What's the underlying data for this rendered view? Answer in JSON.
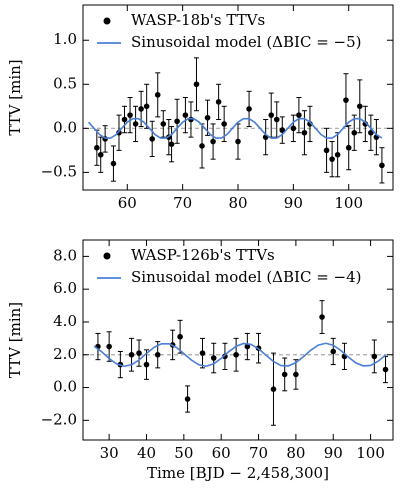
{
  "chart_data": [
    {
      "type": "scatter",
      "ylabel": "TTV [min]",
      "xlim": [
        52,
        108
      ],
      "xticks": [
        60,
        70,
        80,
        90,
        100
      ],
      "ylim": [
        -0.7,
        1.4
      ],
      "yticks": [
        {
          "value": -0.5,
          "label": "−0.5"
        },
        {
          "value": 0,
          "label": "0.0"
        },
        {
          "value": 0.5,
          "label": "0.5"
        },
        {
          "value": 1,
          "label": "1.0"
        }
      ],
      "reference_line": 0,
      "legend": "upper left",
      "series": [
        {
          "name": "WASP-18b's TTVs",
          "color": "#000000",
          "type": "errorbar",
          "x": [
            54.5,
            55.2,
            56,
            57.5,
            58.5,
            59.5,
            60.5,
            61.5,
            62.5,
            63.5,
            64.5,
            65.5,
            66.5,
            67.5,
            68,
            69,
            70.5,
            71.5,
            72.5,
            73.5,
            74.5,
            75.5,
            76.5,
            77.5,
            80,
            82,
            85,
            86,
            87,
            88,
            90,
            91,
            92,
            93,
            96,
            97,
            98,
            99.5,
            100,
            101,
            102,
            103,
            104,
            105,
            106
          ],
          "values": [
            -0.22,
            -0.3,
            -0.12,
            -0.4,
            -0.05,
            0.1,
            0.15,
            0.05,
            0.22,
            0.25,
            -0.12,
            0.38,
            0.05,
            -0.1,
            -0.18,
            0.08,
            0.15,
            0.1,
            0.5,
            -0.2,
            0.12,
            -0.15,
            0.3,
            0.05,
            -0.15,
            0.22,
            -0.1,
            0.15,
            0.1,
            -0.02,
            0,
            0.15,
            -0.05,
            0.05,
            -0.25,
            -0.35,
            -0.3,
            0.32,
            -0.22,
            -0.05,
            0.25,
            0.05,
            -0.05,
            -0.1,
            -0.42
          ],
          "errors": [
            0.2,
            0.2,
            0.15,
            0.2,
            0.2,
            0.15,
            0.2,
            0.2,
            0.2,
            0.25,
            0.2,
            0.25,
            0.15,
            0.2,
            0.2,
            0.25,
            0.2,
            0.2,
            0.3,
            0.25,
            0.2,
            0.2,
            0.2,
            0.2,
            0.2,
            0.2,
            0.2,
            0.25,
            0.2,
            0.15,
            0.15,
            0.2,
            0.25,
            0.2,
            0.25,
            0.2,
            0.25,
            0.3,
            0.25,
            0.2,
            0.3,
            0.2,
            0.2,
            0.2,
            0.2
          ]
        },
        {
          "name": "Sinusoidal model (ΔBIC = −5)",
          "color": "#4a7fd6",
          "type": "line",
          "x": [
            53,
            54,
            55,
            56,
            57,
            58,
            59,
            60,
            61,
            62,
            63,
            64,
            65,
            66,
            67,
            68,
            69,
            70,
            71,
            72,
            73,
            74,
            75,
            76,
            77,
            78,
            79,
            80,
            81,
            82,
            83,
            84,
            85,
            86,
            87,
            88,
            89,
            90,
            91,
            92,
            93,
            94,
            95,
            96,
            97,
            98,
            99,
            100,
            101,
            102,
            103,
            104,
            105,
            106
          ],
          "values": [
            0.07,
            0,
            -0.07,
            -0.11,
            -0.11,
            -0.07,
            0,
            0.07,
            0.11,
            0.11,
            0.07,
            0,
            -0.07,
            -0.11,
            -0.11,
            -0.07,
            0,
            0.07,
            0.11,
            0.11,
            0.07,
            0,
            -0.07,
            -0.11,
            -0.11,
            -0.07,
            0,
            0.07,
            0.11,
            0.11,
            0.07,
            0,
            -0.07,
            -0.11,
            -0.11,
            -0.07,
            0,
            0.07,
            0.11,
            0.11,
            0.07,
            0,
            -0.07,
            -0.11,
            -0.11,
            -0.07,
            0,
            0.07,
            0.11,
            0.11,
            0.07,
            0,
            -0.07,
            -0.11
          ]
        }
      ]
    },
    {
      "type": "scatter",
      "xlabel": "Time [BJD − 2,458,300]",
      "ylabel": "TTV [min]",
      "xlim": [
        23,
        106
      ],
      "xticks": [
        30,
        40,
        50,
        60,
        70,
        80,
        90,
        100
      ],
      "ylim": [
        -3.2,
        9.0
      ],
      "yticks": [
        {
          "value": -2,
          "label": "−2.0"
        },
        {
          "value": 0,
          "label": "0.0"
        },
        {
          "value": 2,
          "label": "2.0"
        },
        {
          "value": 4,
          "label": "4.0"
        },
        {
          "value": 6,
          "label": "6.0"
        },
        {
          "value": 8,
          "label": "8.0"
        }
      ],
      "reference_line": 2,
      "legend": "upper left",
      "series": [
        {
          "name": "WASP-126b's TTVs",
          "color": "#000000",
          "type": "errorbar",
          "x": [
            27,
            30,
            33,
            36,
            38,
            40,
            43,
            47,
            49,
            51,
            55,
            58,
            61,
            64,
            67,
            70,
            74,
            77,
            80,
            87,
            90,
            93,
            101,
            104
          ],
          "values": [
            2.5,
            2.5,
            1.4,
            2.0,
            2.1,
            1.4,
            2.0,
            2.6,
            3.1,
            -0.7,
            2.1,
            1.8,
            1.9,
            2.0,
            2.5,
            2.4,
            -0.1,
            0.8,
            0.8,
            4.3,
            2.2,
            1.9,
            1.9,
            1.1
          ],
          "errors": [
            0.8,
            0.9,
            0.8,
            1.0,
            0.8,
            0.9,
            0.8,
            0.9,
            1.0,
            0.8,
            0.9,
            0.9,
            0.8,
            1.0,
            0.8,
            0.9,
            2.2,
            1.0,
            0.9,
            1.0,
            0.8,
            0.8,
            1.0,
            0.8
          ]
        },
        {
          "name": "Sinusoidal model (ΔBIC = −4)",
          "color": "#4a7fd6",
          "type": "line",
          "x": [
            26,
            28,
            30,
            32,
            34,
            36,
            38,
            40,
            42,
            44,
            46,
            48,
            50,
            52,
            54,
            56,
            58,
            60,
            62,
            64,
            66,
            68,
            70,
            72,
            74,
            76,
            78,
            80,
            82,
            84,
            86,
            88,
            90,
            92,
            94,
            96,
            98,
            100,
            102,
            104
          ],
          "values": [
            2.52,
            2.18,
            1.77,
            1.44,
            1.3,
            1.39,
            1.68,
            2.08,
            2.45,
            2.67,
            2.67,
            2.45,
            2.07,
            1.68,
            1.39,
            1.3,
            1.45,
            1.78,
            2.18,
            2.52,
            2.69,
            2.63,
            2.36,
            1.97,
            1.59,
            1.34,
            1.32,
            1.52,
            1.88,
            2.28,
            2.59,
            2.7,
            2.58,
            2.27,
            1.87,
            1.51,
            1.32,
            1.35,
            1.6,
            1.98
          ]
        }
      ]
    }
  ]
}
